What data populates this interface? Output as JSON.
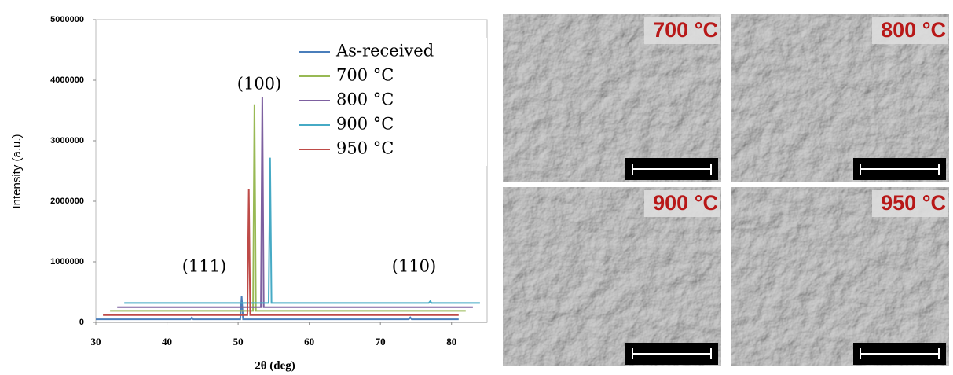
{
  "chart_data": {
    "type": "line",
    "xlabel": "2θ (deg)",
    "ylabel": "Intensity (a.u.)",
    "xlim": [
      30,
      85
    ],
    "ylim": [
      0,
      5000000
    ],
    "xticks": [
      30,
      40,
      50,
      60,
      70,
      80
    ],
    "yticks": [
      0,
      1000000,
      2000000,
      3000000,
      4000000,
      5000000
    ],
    "annotations": [
      "(111)",
      "(100)",
      "(110)"
    ],
    "series": [
      {
        "name": "As-received",
        "color": "#4a7ebb",
        "x": [
          30,
          43.3,
          43.5,
          43.7,
          50.3,
          50.5,
          50.7,
          74,
          74.2,
          74.4,
          81
        ],
        "values": [
          50000,
          50000,
          80000,
          50000,
          50000,
          430000,
          50000,
          50000,
          80000,
          50000,
          50000
        ]
      },
      {
        "name": "700 °C",
        "color": "#98b954",
        "x": [
          32,
          52.1,
          52.3,
          52.5,
          82
        ],
        "values": [
          190000,
          190000,
          3600000,
          190000,
          190000
        ]
      },
      {
        "name": "800 °C",
        "color": "#7d60a0",
        "x": [
          33,
          53.2,
          53.4,
          53.6,
          83
        ],
        "values": [
          250000,
          250000,
          3720000,
          250000,
          250000
        ]
      },
      {
        "name": "900 °C",
        "color": "#46aac5",
        "x": [
          34,
          54.3,
          54.5,
          54.7,
          76.8,
          77,
          77.2,
          84
        ],
        "values": [
          320000,
          320000,
          2720000,
          320000,
          320000,
          350000,
          320000,
          320000
        ]
      },
      {
        "name": "950 °C",
        "color": "#be4b48",
        "x": [
          31,
          51.3,
          51.5,
          51.7,
          81
        ],
        "values": [
          120000,
          120000,
          2200000,
          120000,
          120000
        ]
      }
    ]
  },
  "micrographs": [
    {
      "label": "700 °C"
    },
    {
      "label": "800 °C"
    },
    {
      "label": "900 °C"
    },
    {
      "label": "950 °C"
    }
  ]
}
